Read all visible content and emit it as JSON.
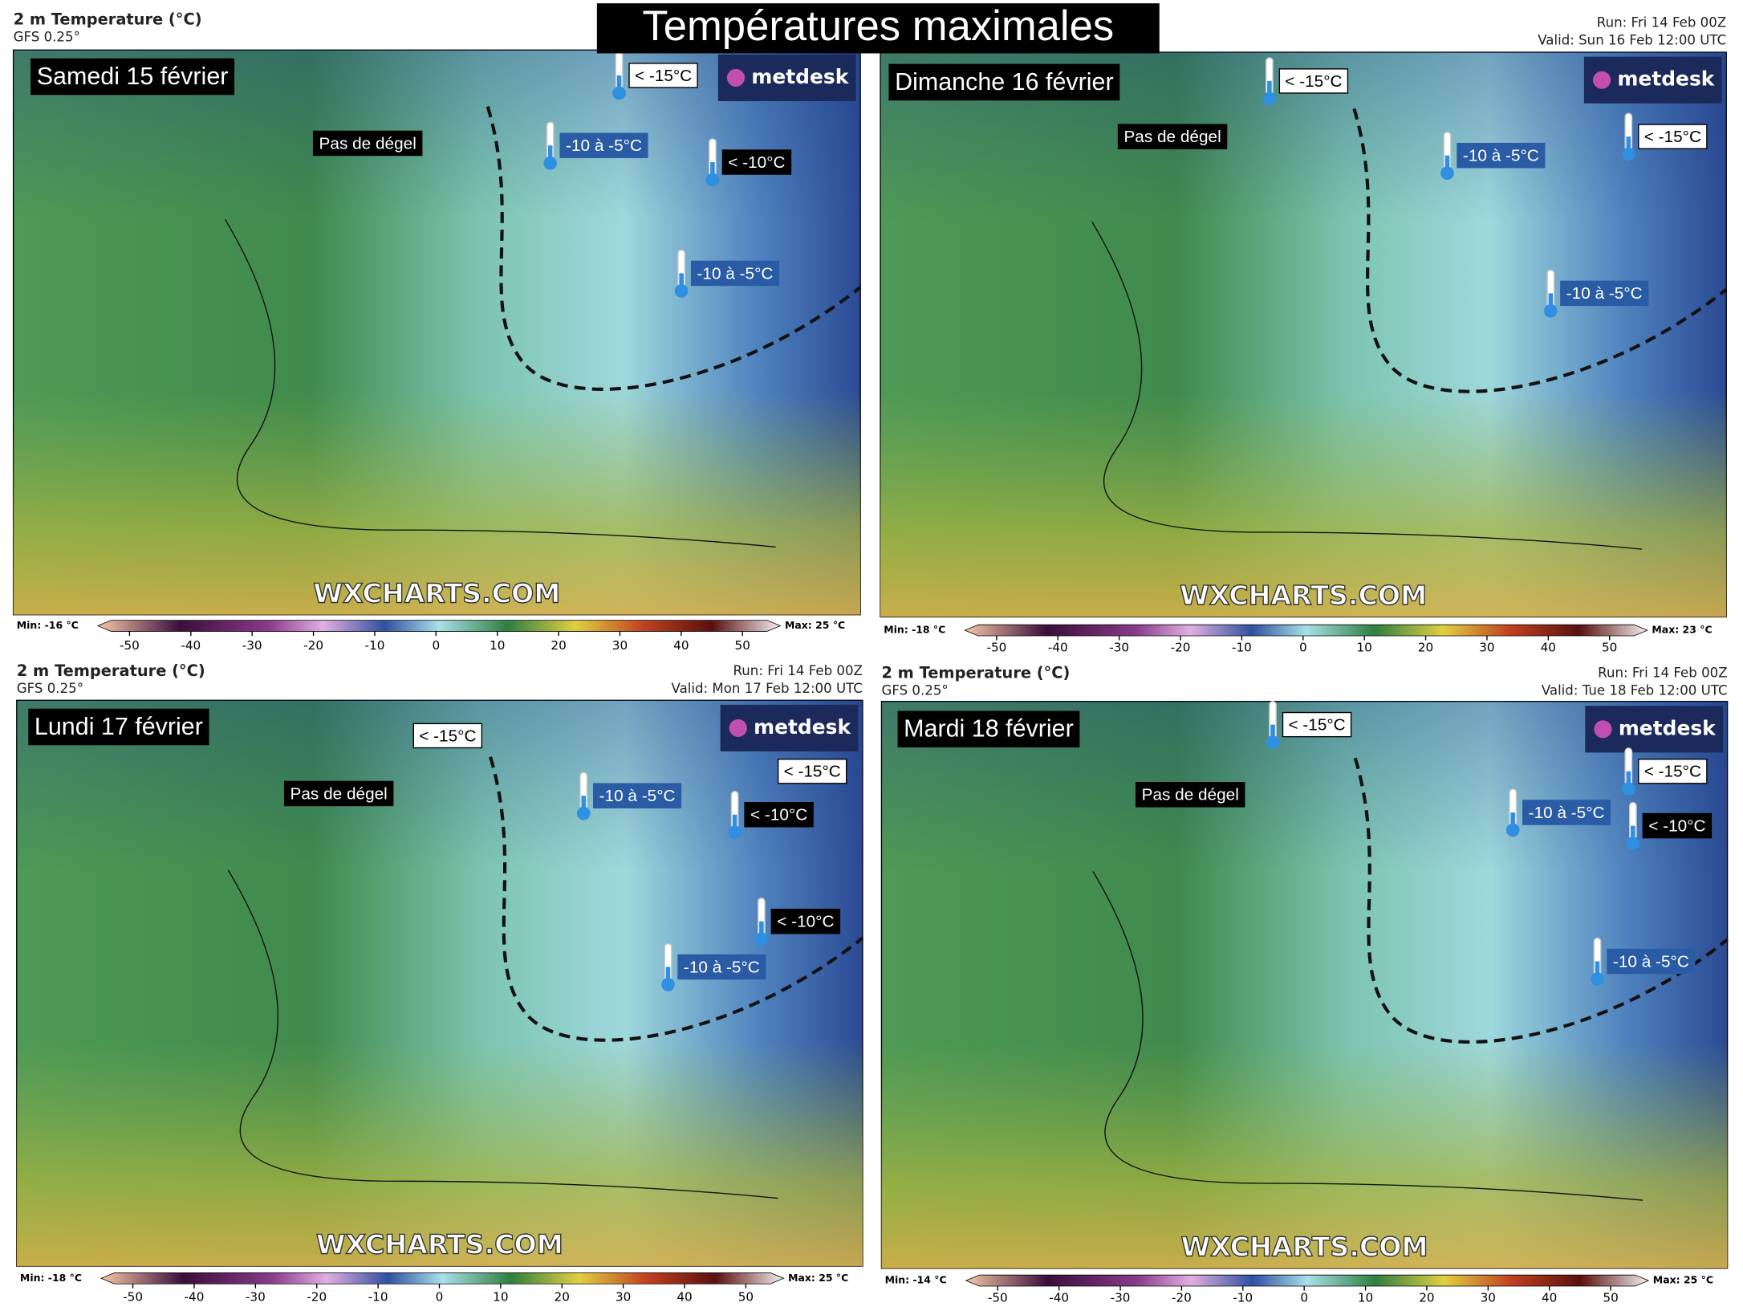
{
  "title": "Températures maximales",
  "panels": [
    {
      "header": {
        "title": "2 m Temperature (°C)",
        "model": "GFS 0.25°"
      },
      "day_label": "Samedi 15 février",
      "logo": "metdesk",
      "watermark": "WXCHARTS.COM",
      "annotations": [
        {
          "text": "Pas de dégel",
          "style": "black"
        },
        {
          "text": "< -15°C",
          "style": "white"
        },
        {
          "text": "-10 à -5°C",
          "style": "blue"
        },
        {
          "text": "< -10°C",
          "style": "black"
        },
        {
          "text": "-10 à -5°C",
          "style": "blue"
        }
      ],
      "colorbar": {
        "min": "Min: -16 °C",
        "max": "Max: 25 °C",
        "lim": [
          -53,
          54
        ],
        "ticks": [
          -50,
          -40,
          -30,
          -20,
          -10,
          0,
          10,
          20,
          30,
          40,
          50
        ]
      }
    },
    {
      "header": {
        "run": "Run: Fri 14 Feb 00Z",
        "valid": "Valid: Sun 16 Feb 12:00 UTC"
      },
      "day_label": "Dimanche 16 février",
      "logo": "metdesk",
      "watermark": "WXCHARTS.COM",
      "annotations": [
        {
          "text": "Pas de dégel",
          "style": "black"
        },
        {
          "text": "< -15°C",
          "style": "white"
        },
        {
          "text": "-10 à -5°C",
          "style": "blue"
        },
        {
          "text": "< -15°C",
          "style": "white"
        },
        {
          "text": "-10 à -5°C",
          "style": "blue"
        }
      ],
      "colorbar": {
        "min": "Min: -18 °C",
        "max": "Max: 23 °C",
        "lim": [
          -53,
          54
        ],
        "ticks": [
          -50,
          -40,
          -30,
          -20,
          -10,
          0,
          10,
          20,
          30,
          40,
          50
        ]
      }
    },
    {
      "header": {
        "title": "2 m Temperature (°C)",
        "model": "GFS 0.25°",
        "run": "Run: Fri 14 Feb 00Z",
        "valid": "Valid: Mon 17 Feb 12:00 UTC"
      },
      "day_label": "Lundi 17 février",
      "logo": "metdesk",
      "watermark": "WXCHARTS.COM",
      "annotations": [
        {
          "text": "< -15°C",
          "style": "white"
        },
        {
          "text": "Pas de dégel",
          "style": "black"
        },
        {
          "text": "< -15°C",
          "style": "white"
        },
        {
          "text": "-10 à -5°C",
          "style": "blue"
        },
        {
          "text": "< -10°C",
          "style": "black"
        },
        {
          "text": "< -10°C",
          "style": "black"
        },
        {
          "text": "-10 à -5°C",
          "style": "blue"
        }
      ],
      "colorbar": {
        "min": "Min: -18 °C",
        "max": "Max: 25 °C",
        "lim": [
          -53,
          54
        ],
        "ticks": [
          -50,
          -40,
          -30,
          -20,
          -10,
          0,
          10,
          20,
          30,
          40,
          50
        ]
      }
    },
    {
      "header": {
        "title": "2 m Temperature (°C)",
        "model": "GFS 0.25°",
        "run": "Run: Fri 14 Feb 00Z",
        "valid": "Valid: Tue 18 Feb 12:00 UTC"
      },
      "day_label": "Mardi 18 février",
      "logo": "metdesk",
      "watermark": "WXCHARTS.COM",
      "annotations": [
        {
          "text": "< -15°C",
          "style": "white"
        },
        {
          "text": "Pas de dégel",
          "style": "black"
        },
        {
          "text": "< -15°C",
          "style": "white"
        },
        {
          "text": "-10 à -5°C",
          "style": "blue"
        },
        {
          "text": "< -10°C",
          "style": "black"
        },
        {
          "text": "-10 à -5°C",
          "style": "blue"
        }
      ],
      "colorbar": {
        "min": "Min: -14 °C",
        "max": "Max: 25 °C",
        "lim": [
          -53,
          54
        ],
        "ticks": [
          -50,
          -40,
          -30,
          -20,
          -10,
          0,
          10,
          20,
          30,
          40,
          50
        ]
      }
    }
  ]
}
